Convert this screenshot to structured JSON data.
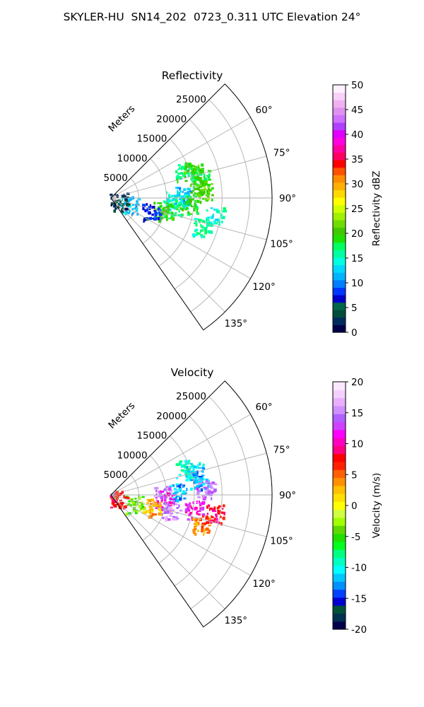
{
  "figure": {
    "title": "SKYLER-HU  SN14_202  0723_0.311 UTC Elevation 24°"
  },
  "chart_data": [
    {
      "type": "polar-sector",
      "title": "Reflectivity",
      "range_label": "Meters",
      "range_ticks": [
        "5000",
        "10000",
        "15000",
        "20000",
        "25000"
      ],
      "range_values": [
        5000,
        10000,
        15000,
        20000,
        25000
      ],
      "range_max": 29000,
      "azimuth_range": [
        45,
        145
      ],
      "azimuth_ticks": [
        "60°",
        "75°",
        "90°",
        "105°",
        "120°",
        "135°"
      ],
      "azimuth_values": [
        60,
        75,
        90,
        105,
        120,
        135
      ],
      "grid": true,
      "colorbar": {
        "label": "Reflectivity dBZ",
        "range": [
          0,
          50
        ],
        "ticks": [
          "0",
          "5",
          "10",
          "15",
          "20",
          "25",
          "30",
          "35",
          "40",
          "45",
          "50"
        ],
        "tick_values": [
          0,
          5,
          10,
          15,
          20,
          25,
          30,
          35,
          40,
          45,
          50
        ]
      },
      "echoes": [
        {
          "az": 70,
          "r": 14000,
          "value": 17
        },
        {
          "az": 72,
          "r": 15500,
          "value": 20
        },
        {
          "az": 76,
          "r": 16500,
          "value": 18
        },
        {
          "az": 82,
          "r": 16000,
          "value": 20
        },
        {
          "az": 86,
          "r": 16500,
          "value": 21
        },
        {
          "az": 88,
          "r": 12500,
          "value": 12
        },
        {
          "az": 92,
          "r": 11500,
          "value": 14
        },
        {
          "az": 95,
          "r": 14000,
          "value": 19
        },
        {
          "az": 100,
          "r": 11000,
          "value": 17
        },
        {
          "az": 104,
          "r": 9500,
          "value": 20
        },
        {
          "az": 108,
          "r": 7500,
          "value": 8
        },
        {
          "az": 113,
          "r": 3500,
          "value": 12
        },
        {
          "az": 117,
          "r": 1500,
          "value": 3
        },
        {
          "az": 100,
          "r": 19000,
          "value": 15
        },
        {
          "az": 108,
          "r": 17000,
          "value": 16
        }
      ]
    },
    {
      "type": "polar-sector",
      "title": "Velocity",
      "range_label": "Meters",
      "range_ticks": [
        "5000",
        "10000",
        "15000",
        "20000",
        "25000"
      ],
      "range_values": [
        5000,
        10000,
        15000,
        20000,
        25000
      ],
      "range_max": 29000,
      "azimuth_range": [
        45,
        145
      ],
      "azimuth_ticks": [
        "60°",
        "75°",
        "90°",
        "105°",
        "120°",
        "135°"
      ],
      "azimuth_values": [
        60,
        75,
        90,
        105,
        120,
        135
      ],
      "grid": true,
      "colorbar": {
        "label": "Velocity (m/s)",
        "range": [
          -20,
          20
        ],
        "ticks": [
          "-20",
          "-15",
          "-10",
          "-5",
          "0",
          "5",
          "10",
          "15",
          "20"
        ],
        "tick_values": [
          -20,
          -15,
          -10,
          -5,
          0,
          5,
          10,
          15,
          20
        ]
      },
      "echoes": [
        {
          "az": 70,
          "r": 14000,
          "value": -9
        },
        {
          "az": 74,
          "r": 15500,
          "value": -11
        },
        {
          "az": 80,
          "r": 16000,
          "value": -12
        },
        {
          "az": 86,
          "r": 17000,
          "value": 14
        },
        {
          "az": 88,
          "r": 12000,
          "value": -12
        },
        {
          "az": 90,
          "r": 9000,
          "value": 15
        },
        {
          "az": 95,
          "r": 9500,
          "value": 11
        },
        {
          "az": 100,
          "r": 15000,
          "value": 11
        },
        {
          "az": 104,
          "r": 11000,
          "value": 15
        },
        {
          "az": 107,
          "r": 7500,
          "value": 3
        },
        {
          "az": 112,
          "r": 4500,
          "value": -4
        },
        {
          "az": 117,
          "r": 1500,
          "value": 7
        },
        {
          "az": 108,
          "r": 17000,
          "value": 4
        },
        {
          "az": 100,
          "r": 19000,
          "value": 8
        }
      ]
    }
  ]
}
